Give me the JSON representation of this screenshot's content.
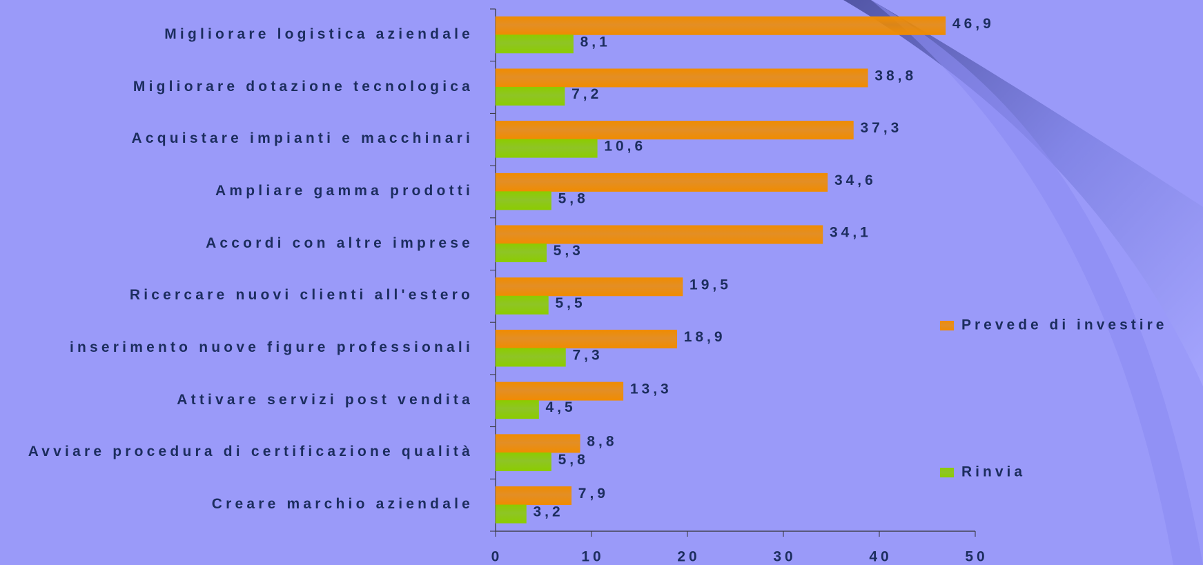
{
  "chart_data": {
    "type": "hbar",
    "categories": [
      "Migliorare logistica aziendale",
      "Migliorare dotazione tecnologica",
      "Acquistare impianti e macchinari",
      "Ampliare gamma prodotti",
      "Accordi con altre imprese",
      "Ricercare nuovi clienti all'estero",
      "inserimento nuove figure professionali",
      "Attivare servizi post vendita",
      "Avviare procedura di certificazione qualità",
      "Creare marchio aziendale"
    ],
    "series": [
      {
        "name": "Prevede di investire",
        "color": "#f08c00",
        "values": [
          46.9,
          38.8,
          37.3,
          34.6,
          34.1,
          19.5,
          18.9,
          13.3,
          8.8,
          7.9
        ],
        "value_labels": [
          "46,9",
          "38,8",
          "37,3",
          "34,6",
          "34,1",
          "19,5",
          "18,9",
          "13,3",
          "8,8",
          "7,9"
        ]
      },
      {
        "name": "Rinvia",
        "color": "#8ccc00",
        "values": [
          8.1,
          7.2,
          10.6,
          5.8,
          5.3,
          5.5,
          7.3,
          4.5,
          5.8,
          3.2
        ],
        "value_labels": [
          "8,1",
          "7,2",
          "10,6",
          "5,8",
          "5,3",
          "5,5",
          "7,3",
          "4,5",
          "5,8",
          "3,2"
        ]
      }
    ],
    "xlim": [
      0,
      50
    ],
    "xticks": [
      0,
      10,
      20,
      30,
      40,
      50
    ],
    "legend": "right"
  }
}
